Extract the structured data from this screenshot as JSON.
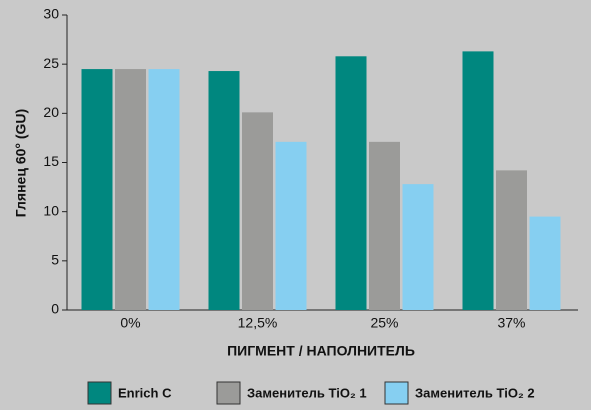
{
  "chart_data": {
    "type": "bar",
    "y_label": "Глянец 60° (GU)",
    "x_label": "ПИГМЕНТ / НАПОЛНИТЕЛЬ",
    "categories": [
      "0%",
      "12,5%",
      "25%",
      "37%"
    ],
    "series": [
      {
        "name": "Enrich C",
        "color": "#00877f",
        "values": [
          24.5,
          24.3,
          25.8,
          26.3
        ]
      },
      {
        "name": "Заменитель TiO₂ 1",
        "color": "#9b9b99",
        "values": [
          24.5,
          20.1,
          17.1,
          14.2
        ]
      },
      {
        "name": "Заменитель TiO₂ 2",
        "color": "#86cff1",
        "values": [
          24.5,
          17.1,
          12.8,
          9.5
        ]
      }
    ],
    "ylim": [
      0,
      30
    ],
    "yticks": [
      0,
      5,
      10,
      15,
      20,
      25,
      30
    ],
    "grid": false
  }
}
